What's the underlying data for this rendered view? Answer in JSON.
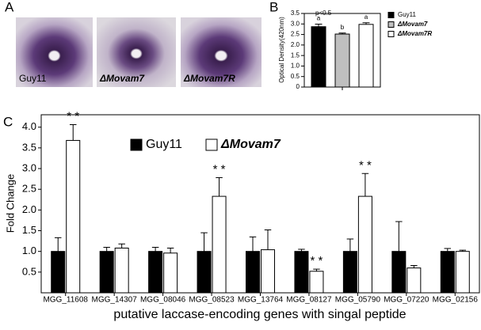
{
  "photo_panel": {
    "label": "A",
    "captions": [
      "Guy11",
      "ΔMovam7",
      "ΔMovam7R"
    ]
  },
  "chart_data": [
    {
      "type": "bar",
      "panel_label": "B",
      "annotation": "p<0.5",
      "ylabel": "Optical Density(420nm)",
      "categories": [
        null
      ],
      "series": [
        {
          "name": "Guy11",
          "color": "#000000",
          "values": [
            2.87
          ],
          "errors": [
            0.12
          ],
          "annotations": [
            "a"
          ]
        },
        {
          "name": "ΔMovam7",
          "color": "#bfbfbf",
          "values": [
            2.52
          ],
          "errors": [
            0.05
          ],
          "annotations": [
            "b"
          ]
        },
        {
          "name": "ΔMovam7R",
          "color": "#ffffff",
          "values": [
            2.98
          ],
          "errors": [
            0.08
          ],
          "annotations": [
            "a"
          ]
        }
      ],
      "ylim": [
        0,
        3.5
      ],
      "yticks": [
        0,
        0.5,
        {
          "value": 1,
          "label": "1.0"
        },
        1.5,
        {
          "value": 2,
          "label": "2.0"
        },
        2.5,
        {
          "value": 3,
          "label": "3.0"
        },
        3.5
      ]
    },
    {
      "type": "bar",
      "panel_label": "C",
      "xlabel": "putative laccase-encoding genes with singal peptide",
      "ylabel": "Fold Change",
      "categories": [
        "MGG_11608",
        "MGG_14307",
        "MGG_08046",
        "MGG_08523",
        "MGG_13764",
        "MGG_08127",
        "MGG_05790",
        "MGG_07220",
        "MGG_02156"
      ],
      "series": [
        {
          "name": "Guy11",
          "color": "#000000",
          "values": [
            1,
            1,
            1,
            1,
            1,
            1,
            1,
            1,
            1
          ],
          "errors": [
            0.33,
            0.1,
            0.1,
            0.45,
            0.35,
            0.05,
            0.3,
            0.72,
            0.07
          ]
        },
        {
          "name": "ΔMovam7",
          "color": "#ffffff",
          "values": [
            3.68,
            1.08,
            0.96,
            2.33,
            1.04,
            0.52,
            2.33,
            0.6,
            1.0
          ],
          "errors": [
            0.38,
            0.1,
            0.12,
            0.45,
            0.48,
            0.05,
            0.55,
            0.06,
            0.03
          ],
          "annotations": [
            "* *",
            null,
            null,
            "* *",
            null,
            "* *",
            "* *",
            null,
            null
          ]
        }
      ],
      "ylim": [
        0,
        4.3
      ],
      "yticks": [
        0.5,
        {
          "value": 1,
          "label": "1.0"
        },
        1.5,
        {
          "value": 2,
          "label": "2.0"
        },
        2.5,
        {
          "value": 3,
          "label": "3.0"
        },
        3.5,
        {
          "value": 4,
          "label": "4.0"
        }
      ]
    }
  ]
}
